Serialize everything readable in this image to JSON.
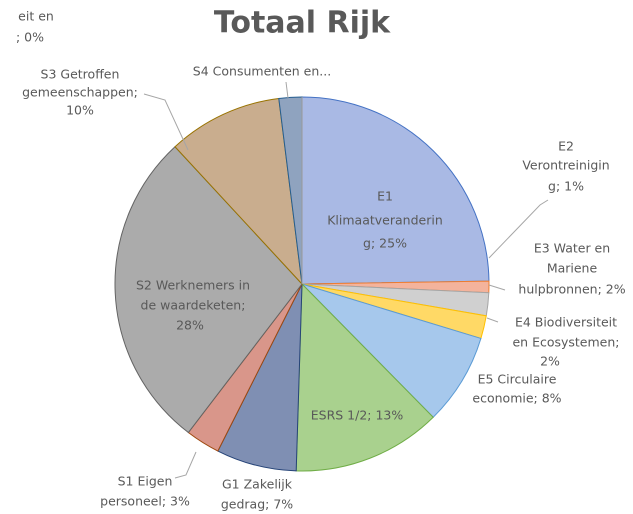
{
  "chart_data": {
    "type": "pie",
    "title": "Totaal Rijk",
    "values": [
      25,
      1,
      2,
      2,
      8,
      13,
      7,
      3,
      28,
      10,
      2,
      0
    ],
    "colors": [
      "#a9b9e4",
      "#f4b39c",
      "#d0d0d0",
      "#ffd966",
      "#a6c8ec",
      "#a9d18e",
      "#7f8fb3",
      "#d9968a",
      "#ababab",
      "#c9ad8e",
      "#8fa3bf",
      "#e0e0e0"
    ],
    "labels": [
      [
        "E1",
        "Klimaatveranderin",
        "g; 25%"
      ],
      [
        "E2",
        "Verontreinigin",
        "g; 1%"
      ],
      [
        "E3 Water en",
        "Mariene",
        "hulpbronnen; 2%"
      ],
      [
        "E4 Biodiversiteit",
        "en Ecosystemen;",
        "2%"
      ],
      [
        "E5 Circulaire",
        "economie; 8%"
      ],
      [
        "ESRS 1/2; 13%"
      ],
      [
        "G1 Zakelijk",
        "gedrag; 7%"
      ],
      [
        "S1 Eigen",
        "personeel; 3%"
      ],
      [
        "S2 Werknemers in",
        "de waardeketen;",
        "28%"
      ],
      [
        "S3 Getroffen",
        "gemeenschappen;",
        "10%"
      ],
      [
        "S4 Consumenten en..."
      ],
      [
        "eit en",
        "; 0%"
      ]
    ]
  }
}
